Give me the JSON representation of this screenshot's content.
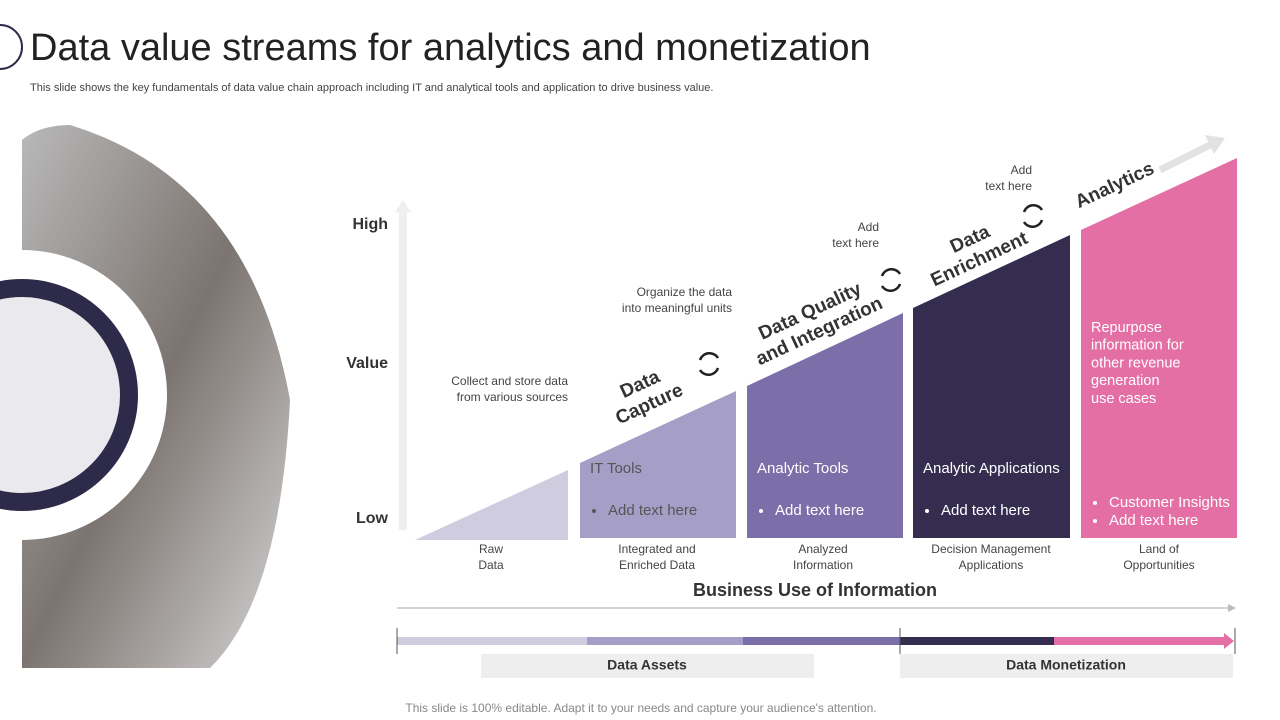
{
  "header": {
    "title": "Data value streams for analytics and monetization",
    "subtitle": "This slide shows the key fundamentals of data value chain approach including IT and analytical tools and application to drive business value."
  },
  "axis": {
    "high": "High",
    "value": "Value",
    "low": "Low"
  },
  "stage_headings": [
    [
      "Data",
      "Capture"
    ],
    [
      "Data Quality",
      "and Integration"
    ],
    [
      "Data",
      "Enrichment"
    ],
    [
      "Analytics"
    ]
  ],
  "notes": [
    [
      "Collect and store data",
      "from various  sources"
    ],
    [
      "Organize the data",
      "into meaningful units"
    ],
    [
      "Add",
      "text here"
    ],
    [
      "Add",
      "text here"
    ]
  ],
  "columns": [
    {
      "label": [
        "Raw",
        "Data"
      ]
    },
    {
      "title": "IT Tools",
      "bullets": [
        "Add text here"
      ],
      "label": [
        "Integrated and",
        "Enriched Data"
      ]
    },
    {
      "title": "Analytic Tools",
      "bullets": [
        "Add text here"
      ],
      "label": [
        "Analyzed",
        "Information"
      ]
    },
    {
      "title": "Analytic Applications",
      "bullets": [
        "Add text here"
      ],
      "label": [
        "Decision Management",
        "Applications"
      ]
    },
    {
      "description": [
        "Repurpose",
        "information for",
        "other revenue",
        "generation",
        "use cases"
      ],
      "bullets": [
        "Customer Insights",
        "Add text here"
      ],
      "label": [
        "Land of",
        "Opportunities"
      ]
    }
  ],
  "business_use": "Business Use of Information",
  "bands": [
    "Data Assets",
    "Data Monetization"
  ],
  "footer": "This slide is 100% editable. Adapt it to your needs and capture your audience's attention."
}
